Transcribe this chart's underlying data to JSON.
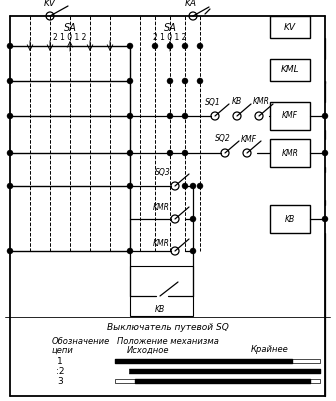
{
  "bg_color": "#ffffff",
  "fig_width": 3.36,
  "fig_height": 4.01,
  "dpi": 100,
  "line_color": "#000000",
  "text_color": "#000000",
  "label_KV_left": "KV",
  "label_KA": "KA",
  "label_KV_right": "KV",
  "label_KML": "KML",
  "label_SA_1": "SA",
  "label_SA_nums_1": "2 1 0 1 2",
  "label_SA_2": "SA",
  "label_SA_nums_2": "2 1 0 1 2",
  "label_SQ1": "SQ1",
  "label_SQ2": "SQ2",
  "label_SQ3": "SQ3",
  "label_KB_1": "KB",
  "label_KB_2": "KB",
  "label_KB_3": "KB",
  "label_KMR_1": "KMR",
  "label_KMR_2": "KMR",
  "label_KMR_3": "KMR",
  "label_KMF_1": "KMF",
  "label_KMF_2": "KMF",
  "legend_title": "Выключатель путевой SQ",
  "legend_col1_line1": "Обозначение",
  "legend_col1_line2": "цепи",
  "legend_col2_line1": "Положение механизма",
  "legend_col2_line2": "Исходное",
  "legend_col3": "Крайнее",
  "legend_rows": [
    "1",
    ":2",
    "3"
  ]
}
